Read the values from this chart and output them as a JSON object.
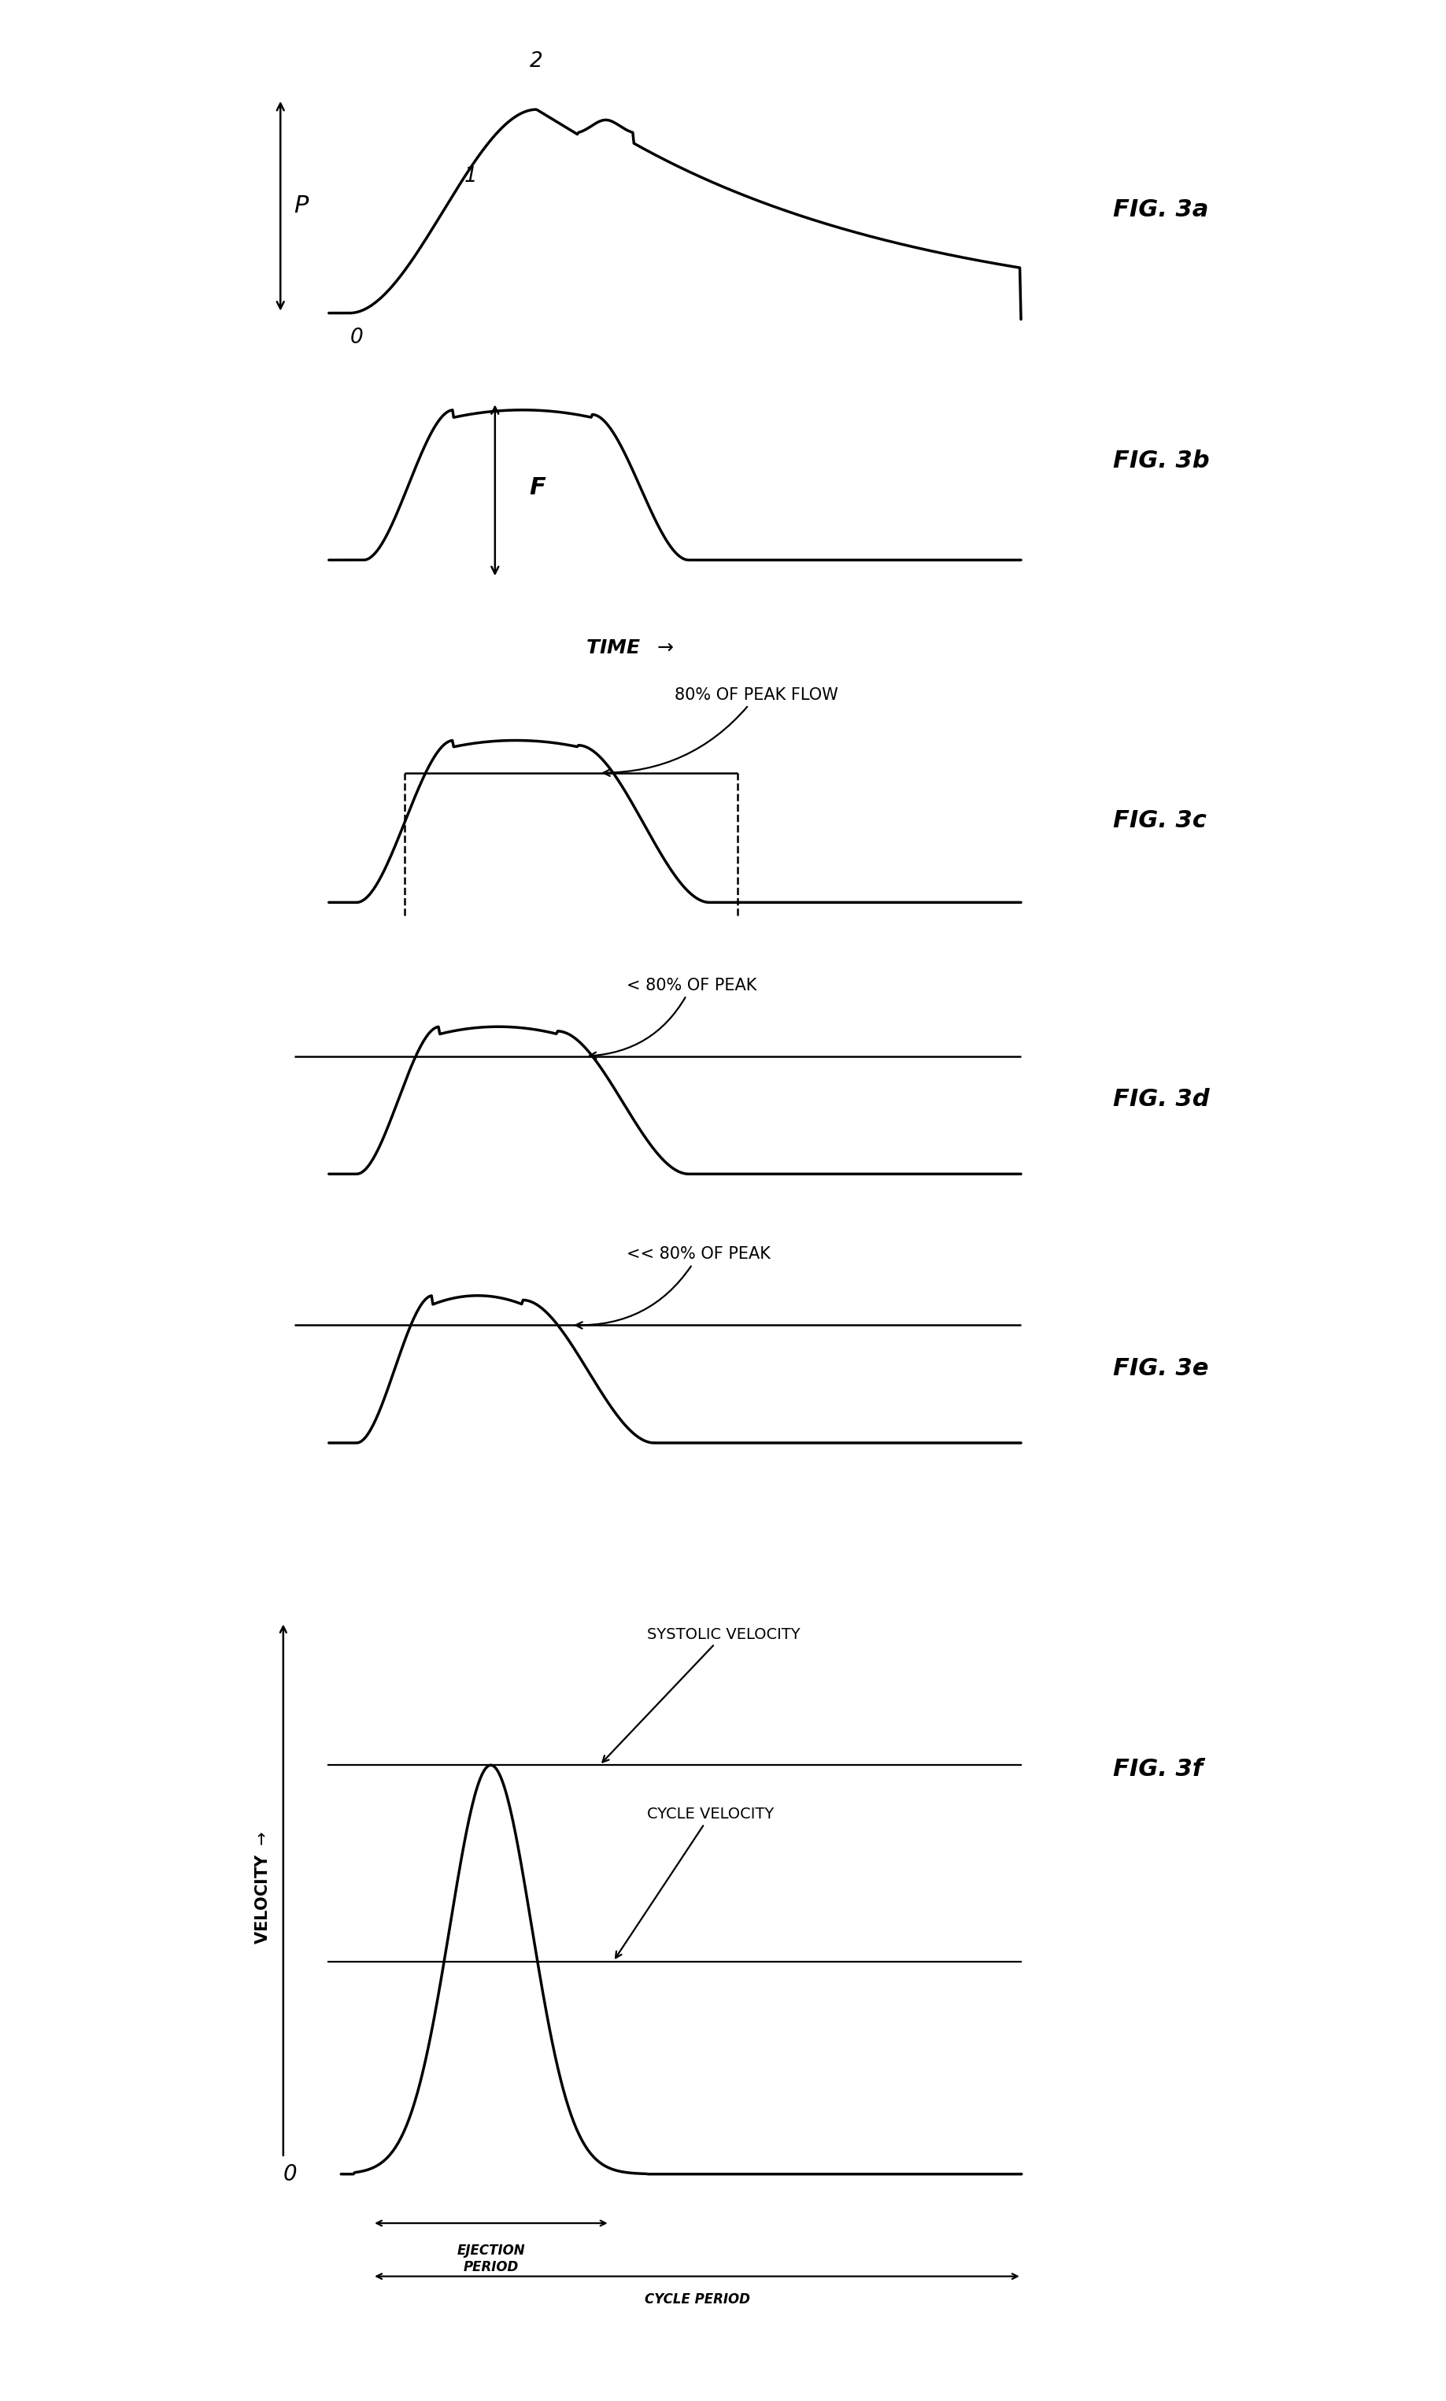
{
  "fig_width": 18.37,
  "fig_height": 30.5,
  "bg_color": "#ffffff",
  "line_color": "#000000",
  "line_width": 2.5,
  "fig_labels": [
    "FIG. 3a",
    "FIG. 3b",
    "FIG. 3c",
    "FIG. 3d",
    "FIG. 3e",
    "FIG. 3f"
  ],
  "annotation_c": "80% OF PEAK FLOW",
  "annotation_d": "< 80% OF PEAK",
  "annotation_e": "<< 80% OF PEAK",
  "annotation_f1": "SYSTOLIC VELOCITY",
  "annotation_f2": "CYCLE VELOCITY",
  "label_time": "TIME",
  "label_velocity": "VELOCITY",
  "label_ejection": "EJECTION\nPERIOD",
  "label_cycle": "CYCLE PERIOD",
  "label_P": "P",
  "label_F": "F"
}
